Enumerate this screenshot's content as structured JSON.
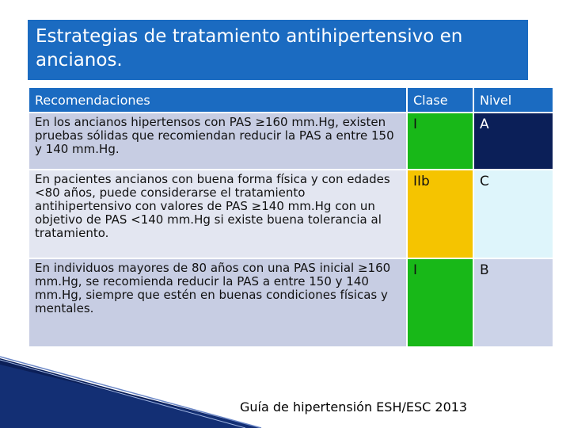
{
  "title": "Estrategias de tratamiento antihipertensivo en ancianos.",
  "table": {
    "headers": [
      "Recomendaciones",
      "Clase",
      "Nivel"
    ],
    "rows": [
      {
        "recommendation": "En los ancianos hipertensos con PAS ≥160 mm.Hg, existen pruebas sólidas que recomiendan reducir la PAS a entre 150 y 140 mm.Hg.",
        "clase": "I",
        "nivel": "A",
        "clase_color": "#18b818",
        "nivel_color": "#0b1f58",
        "nivel_text_color": "#ffffff"
      },
      {
        "recommendation": "En pacientes ancianos con buena forma física y con edades <80 años, puede considerarse el tratamiento antihipertensivo con valores de PAS ≥140 mm.Hg con un objetivo de PAS <140 mm.Hg si existe buena tolerancia al tratamiento.",
        "clase": "IIb",
        "nivel": "C",
        "clase_color": "#f5c400",
        "nivel_color": "#def5fb",
        "nivel_text_color": "#111111"
      },
      {
        "recommendation": "En individuos mayores de 80 años con una PAS inicial ≥160 mm.Hg, se recomienda reducir la PAS a entre 150 y 140 mm.Hg, siempre que estén en buenas condiciones físicas y mentales.",
        "clase": "I",
        "nivel": "B",
        "clase_color": "#18b818",
        "nivel_color": "#ccd3e8",
        "nivel_text_color": "#111111"
      }
    ]
  },
  "citation": "Guía de hipertensión ESH/ESC 2013"
}
